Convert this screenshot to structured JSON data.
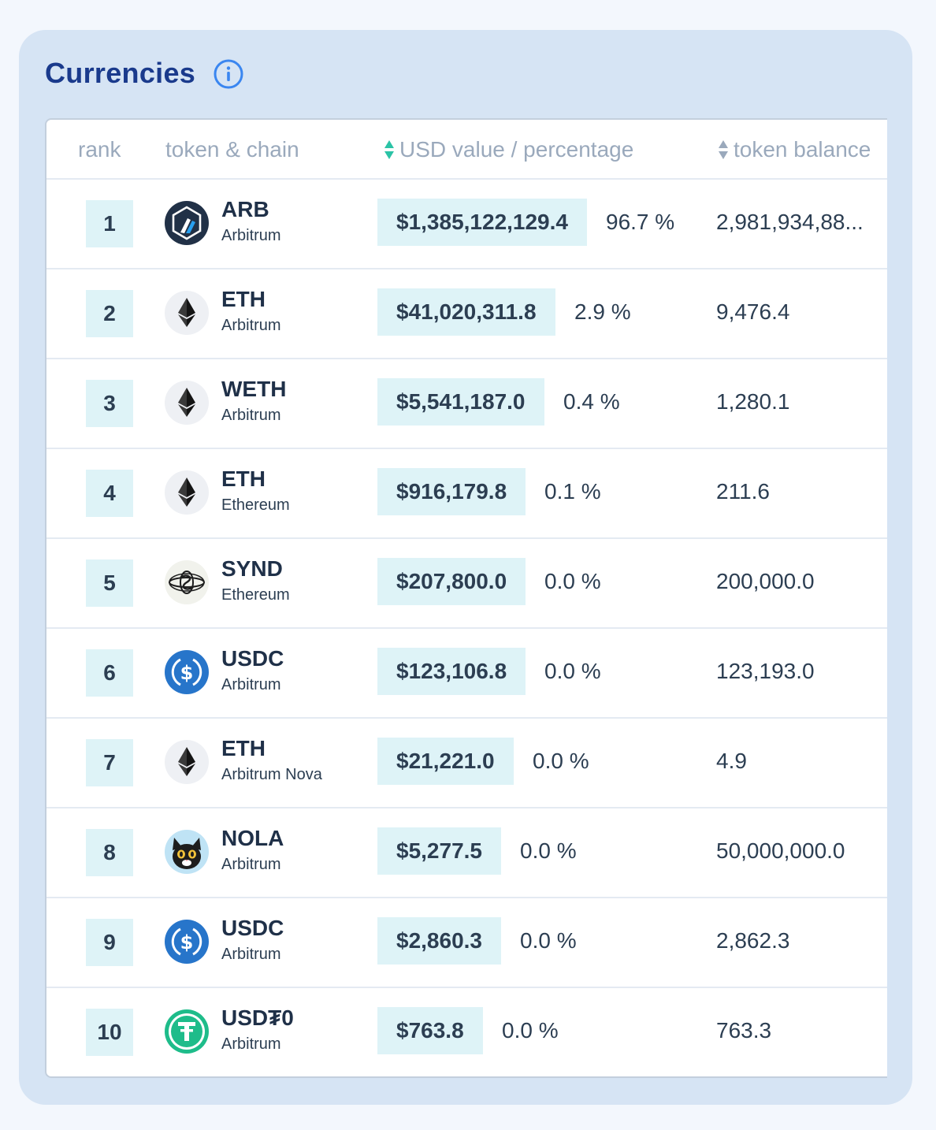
{
  "card": {
    "title": "Currencies",
    "info_icon": "info-icon"
  },
  "table": {
    "headers": {
      "rank": "rank",
      "token_chain": "token & chain",
      "usd_value": "USD value / percentage",
      "token_balance": "token balance"
    },
    "rows": [
      {
        "rank": "1",
        "symbol": "ARB",
        "chain": "Arbitrum",
        "usd": "$1,385,122,129.4",
        "pct": "96.7 %",
        "balance": "2,981,934,88...",
        "icon": "arbitrum-icon"
      },
      {
        "rank": "2",
        "symbol": "ETH",
        "chain": "Arbitrum",
        "usd": "$41,020,311.8",
        "pct": "2.9 %",
        "balance": "9,476.4",
        "icon": "ethereum-icon"
      },
      {
        "rank": "3",
        "symbol": "WETH",
        "chain": "Arbitrum",
        "usd": "$5,541,187.0",
        "pct": "0.4 %",
        "balance": "1,280.1",
        "icon": "ethereum-icon"
      },
      {
        "rank": "4",
        "symbol": "ETH",
        "chain": "Ethereum",
        "usd": "$916,179.8",
        "pct": "0.1 %",
        "balance": "211.6",
        "icon": "ethereum-icon"
      },
      {
        "rank": "5",
        "symbol": "SYND",
        "chain": "Ethereum",
        "usd": "$207,800.0",
        "pct": "0.0 %",
        "balance": "200,000.0",
        "icon": "synd-icon"
      },
      {
        "rank": "6",
        "symbol": "USDC",
        "chain": "Arbitrum",
        "usd": "$123,106.8",
        "pct": "0.0 %",
        "balance": "123,193.0",
        "icon": "usdc-icon"
      },
      {
        "rank": "7",
        "symbol": "ETH",
        "chain": "Arbitrum Nova",
        "usd": "$21,221.0",
        "pct": "0.0 %",
        "balance": "4.9",
        "icon": "ethereum-icon"
      },
      {
        "rank": "8",
        "symbol": "NOLA",
        "chain": "Arbitrum",
        "usd": "$5,277.5",
        "pct": "0.0 %",
        "balance": "50,000,000.0",
        "icon": "nola-cat-icon"
      },
      {
        "rank": "9",
        "symbol": "USDC",
        "chain": "Arbitrum",
        "usd": "$2,860.3",
        "pct": "0.0 %",
        "balance": "2,862.3",
        "icon": "usdc-icon"
      },
      {
        "rank": "10",
        "symbol": "USD₮0",
        "chain": "Arbitrum",
        "usd": "$763.8",
        "pct": "0.0 %",
        "balance": "763.3",
        "icon": "usdt0-icon"
      }
    ]
  },
  "colors": {
    "page_bg": "#f3f7fd",
    "card_bg": "#d6e4f4",
    "title": "#1a3a8c",
    "info_icon": "#3a86f0",
    "pill_bg": "#def3f7",
    "header_text": "#9aa9bc",
    "sort_up": "#2bc3a6",
    "sort_down": "#9aa9bc",
    "usdc_blue": "#2775ca",
    "usdt_green": "#1ebc8a"
  }
}
